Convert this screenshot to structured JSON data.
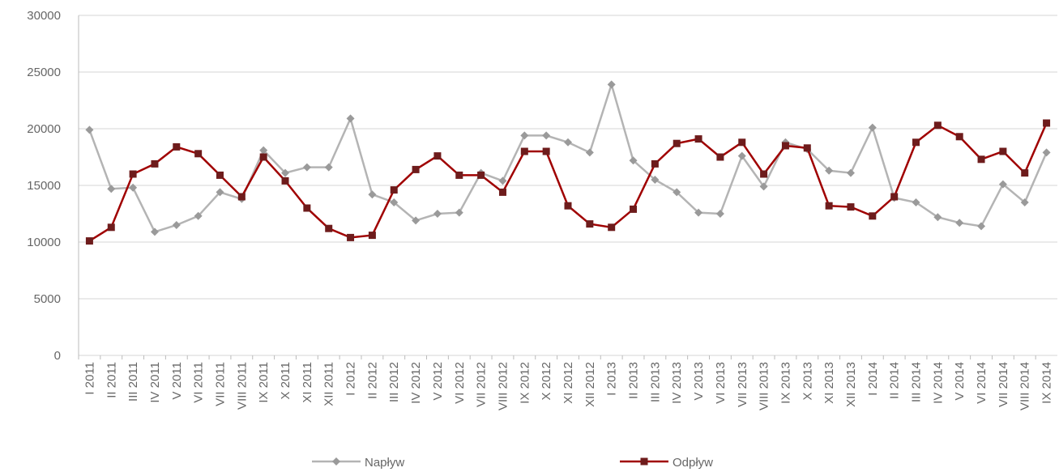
{
  "chart_data": {
    "type": "line",
    "categories": [
      "I 2011",
      "II 2011",
      "III 2011",
      "IV 2011",
      "V 2011",
      "VI 2011",
      "VII 2011",
      "VIII 2011",
      "IX 2011",
      "X 2011",
      "XI 2011",
      "XII 2011",
      "I 2012",
      "II 2012",
      "III 2012",
      "IV 2012",
      "V 2012",
      "VI 2012",
      "VII 2012",
      "VIII 2012",
      "IX 2012",
      "X 2012",
      "XI 2012",
      "XII 2012",
      "I 2013",
      "II 2013",
      "III 2013",
      "IV 2013",
      "V 2013",
      "VI 2013",
      "VII 2013",
      "VIII 2013",
      "IX 2013",
      "X 2013",
      "XI 2013",
      "XII 2013",
      "I 2014",
      "II 2014",
      "III 2014",
      "IV 2014",
      "V 2014",
      "VI 2014",
      "VII 2014",
      "VIII 2014",
      "IX 2014"
    ],
    "series": [
      {
        "name": "Napływ",
        "color": "#b4b4b4",
        "marker": "diamond",
        "marker_color": "#9a9a9a",
        "values": [
          19900,
          14700,
          14800,
          10900,
          11500,
          12300,
          14400,
          13800,
          18100,
          16100,
          16600,
          16600,
          20900,
          14200,
          13500,
          11900,
          12500,
          12600,
          16100,
          15400,
          19400,
          19400,
          18800,
          17900,
          23900,
          17200,
          15500,
          14400,
          12600,
          12500,
          17600,
          14900,
          18800,
          18200,
          16300,
          16100,
          20100,
          13900,
          13500,
          12200,
          11700,
          11400,
          15100,
          13500,
          17900
        ]
      },
      {
        "name": "Odpływ",
        "color": "#a00000",
        "marker": "square",
        "marker_color": "#6e1c1c",
        "values": [
          10100,
          11300,
          16000,
          16900,
          18400,
          17800,
          15900,
          14000,
          17500,
          15400,
          13000,
          11200,
          10400,
          10600,
          14600,
          16400,
          17600,
          15900,
          15900,
          14400,
          18000,
          18000,
          13200,
          11600,
          11300,
          12900,
          16900,
          18700,
          19100,
          17500,
          18800,
          16000,
          18500,
          18300,
          13200,
          13100,
          12300,
          14000,
          18800,
          20300,
          19300,
          17300,
          18000,
          16100,
          20500
        ]
      }
    ],
    "ylim": [
      0,
      30000
    ],
    "yticks": [
      0,
      5000,
      10000,
      15000,
      20000,
      25000,
      30000
    ],
    "grid": true,
    "legend": "bottom"
  }
}
